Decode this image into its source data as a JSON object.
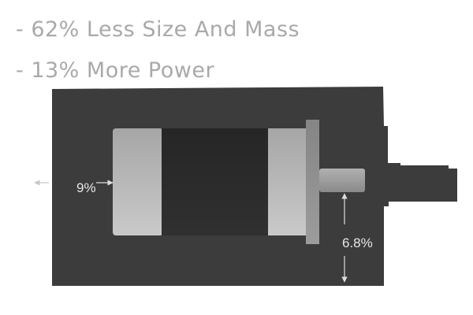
{
  "headlines": {
    "line1": "- 62% Less Size And Mass",
    "line2": "- 13% More Power"
  },
  "annotations": {
    "radial_gap": "9%",
    "shaft_gap": "6.8%"
  },
  "colors": {
    "housing": "#3c3c3c",
    "motor_end": "#b8b8b8",
    "motor_core": "#2a2a2a",
    "flange": "#8f8f8f",
    "shaft": "#a3a3a3",
    "arrow_inner": "#dddddd",
    "arrow_outer": "#c8c8c8",
    "text": "#a9a9a9"
  }
}
